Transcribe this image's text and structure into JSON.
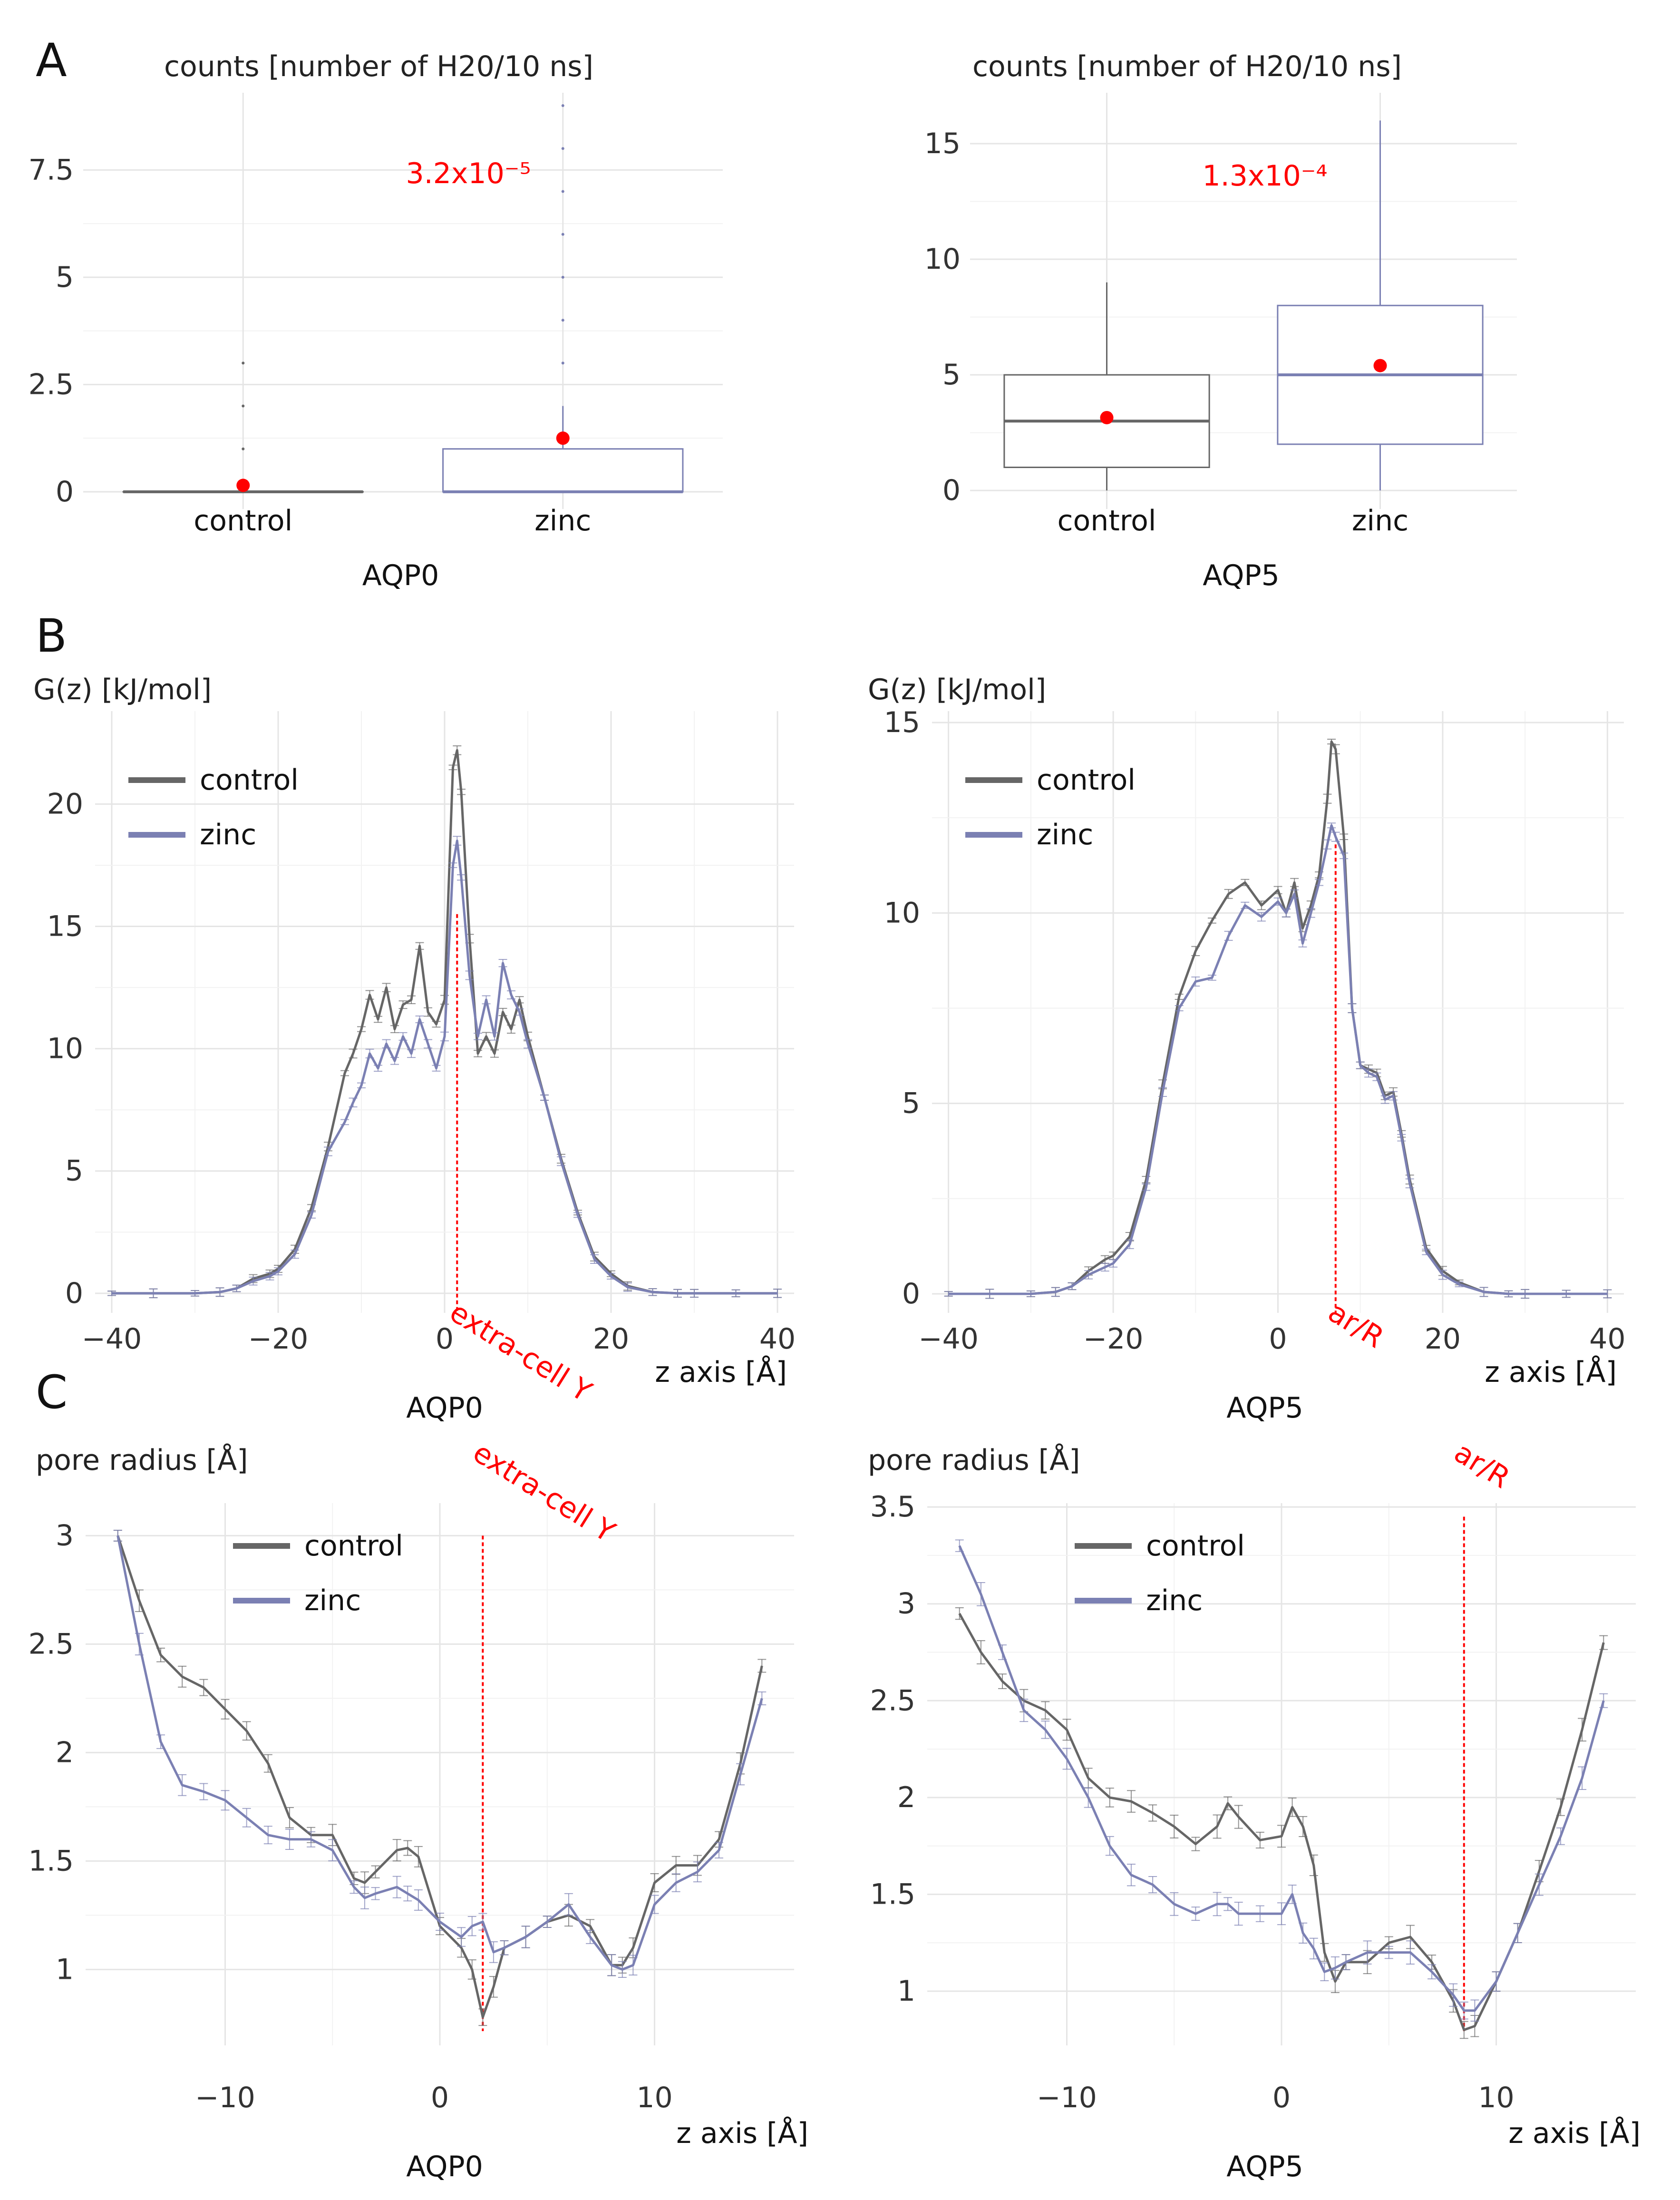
{
  "figure": {
    "panel_labels": [
      "A",
      "B",
      "C"
    ]
  },
  "colors": {
    "control": "#666666",
    "zinc": "#7b80b3",
    "mean_point": "#ff0000",
    "marker": "#ff0000"
  },
  "chart_data": [
    {
      "id": "A-AQP0",
      "type": "box",
      "ylabel": "counts [number of H20/10 ns]",
      "xlabel": "AQP0",
      "categories": [
        "control",
        "zinc"
      ],
      "yticks": [
        0,
        2.5,
        5,
        7.5
      ],
      "ytick_labels": [
        "0",
        "2.5",
        "5",
        "7.5"
      ],
      "ylim": [
        -0.4,
        9.3
      ],
      "pvalue": "3.2x10⁻⁵",
      "boxes": [
        {
          "name": "control",
          "min": 0,
          "q1": 0,
          "median": 0,
          "q3": 0,
          "max": 0,
          "mean": 0.15,
          "outliers": [
            1,
            2,
            3
          ]
        },
        {
          "name": "zinc",
          "min": 0,
          "q1": 0,
          "median": 0,
          "q3": 1,
          "max": 2,
          "mean": 1.25,
          "outliers": [
            3,
            4,
            5,
            6,
            7,
            8,
            9
          ]
        }
      ]
    },
    {
      "id": "A-AQP5",
      "type": "box",
      "ylabel": "counts [number of H20/10 ns]",
      "xlabel": "AQP5",
      "categories": [
        "control",
        "zinc"
      ],
      "yticks": [
        0,
        5,
        10,
        15
      ],
      "ytick_labels": [
        "0",
        "5",
        "10",
        "15"
      ],
      "ylim": [
        -0.8,
        17.2
      ],
      "pvalue": "1.3x10⁻⁴",
      "boxes": [
        {
          "name": "control",
          "min": 0,
          "q1": 1,
          "median": 3,
          "q3": 5,
          "max": 9,
          "mean": 3.15,
          "outliers": []
        },
        {
          "name": "zinc",
          "min": 0,
          "q1": 2,
          "median": 5,
          "q3": 8,
          "max": 16,
          "mean": 5.4,
          "outliers": []
        }
      ]
    },
    {
      "id": "B-AQP0",
      "type": "line",
      "ylabel": "G(z) [kJ/mol]",
      "xlabel": "z axis [Å]",
      "subtitle": "AQP0",
      "xlim": [
        -42,
        42
      ],
      "ylim": [
        -0.8,
        23.8
      ],
      "xticks": [
        -40,
        -20,
        0,
        20,
        40
      ],
      "xtick_labels": [
        "−40",
        "−20",
        "0",
        "20",
        "40"
      ],
      "yticks": [
        0,
        5,
        10,
        15,
        20
      ],
      "ytick_labels": [
        "0",
        "5",
        "10",
        "15",
        "20"
      ],
      "legend": [
        "control",
        "zinc"
      ],
      "marker": {
        "x": 1.5,
        "y_top": 15.5,
        "label": "extra-cell Y"
      },
      "series": [
        {
          "name": "control",
          "x": [
            -40,
            -35,
            -30,
            -27,
            -25,
            -23,
            -21,
            -20,
            -18,
            -16,
            -14,
            -12,
            -11,
            -10,
            -9,
            -8,
            -7,
            -6,
            -5,
            -4,
            -3,
            -2,
            -1,
            0,
            1,
            1.5,
            2,
            3,
            4,
            5,
            6,
            7,
            8,
            9,
            10,
            12,
            14,
            16,
            18,
            20,
            22,
            25,
            28,
            30,
            35,
            40
          ],
          "y": [
            0,
            0,
            0,
            0.05,
            0.2,
            0.6,
            0.8,
            1.0,
            1.8,
            3.5,
            6,
            9,
            9.8,
            10.8,
            12.2,
            11.2,
            12.5,
            10.8,
            11.8,
            12.0,
            14.2,
            11.5,
            11.0,
            12.0,
            21.5,
            22.2,
            20.5,
            14.5,
            9.8,
            10.5,
            9.8,
            11.5,
            10.8,
            12.0,
            10.5,
            8.0,
            5.5,
            3.3,
            1.5,
            0.8,
            0.3,
            0.05,
            0,
            0,
            0,
            0
          ]
        },
        {
          "name": "zinc",
          "x": [
            -40,
            -35,
            -30,
            -27,
            -25,
            -23,
            -21,
            -20,
            -18,
            -16,
            -14,
            -12,
            -11,
            -10,
            -9,
            -8,
            -7,
            -6,
            -5,
            -4,
            -3,
            -2,
            -1,
            0,
            1,
            1.5,
            2,
            3,
            4,
            5,
            6,
            7,
            8,
            9,
            10,
            12,
            14,
            16,
            18,
            20,
            22,
            25,
            28,
            30,
            35,
            40
          ],
          "y": [
            0,
            0,
            0,
            0.05,
            0.2,
            0.5,
            0.7,
            0.9,
            1.6,
            3.2,
            5.8,
            7.0,
            7.8,
            8.5,
            9.8,
            9.2,
            10.2,
            9.5,
            10.5,
            9.8,
            11.2,
            10.2,
            9.2,
            10.5,
            17.5,
            18.5,
            17.0,
            13.0,
            10.5,
            12.0,
            10.5,
            13.5,
            12.2,
            11.5,
            10.2,
            8.0,
            5.4,
            3.2,
            1.4,
            0.7,
            0.25,
            0.05,
            0,
            0,
            0,
            0
          ]
        }
      ]
    },
    {
      "id": "B-AQP5",
      "type": "line",
      "ylabel": "G(z) [kJ/mol]",
      "xlabel": "z axis [Å]",
      "subtitle": "AQP5",
      "xlim": [
        -42,
        42
      ],
      "ylim": [
        -0.5,
        15.3
      ],
      "xticks": [
        -40,
        -20,
        0,
        20,
        40
      ],
      "xtick_labels": [
        "−40",
        "−20",
        "0",
        "20",
        "40"
      ],
      "yticks": [
        0,
        5,
        10,
        15
      ],
      "ytick_labels": [
        "0",
        "5",
        "10",
        "15"
      ],
      "legend": [
        "control",
        "zinc"
      ],
      "marker": {
        "x": 7,
        "y_top": 11.8,
        "label": "ar/R"
      },
      "series": [
        {
          "name": "control",
          "x": [
            -40,
            -35,
            -30,
            -27,
            -25,
            -23,
            -21,
            -20,
            -18,
            -16,
            -14,
            -12,
            -10,
            -8,
            -6,
            -4,
            -2,
            0,
            1,
            2,
            3,
            4,
            5,
            6,
            6.5,
            7,
            8,
            9,
            10,
            11,
            12,
            13,
            14,
            15,
            16,
            18,
            20,
            22,
            25,
            28,
            30,
            35,
            40
          ],
          "y": [
            0,
            0,
            0,
            0.05,
            0.2,
            0.6,
            0.9,
            1.0,
            1.5,
            3.0,
            5.5,
            7.8,
            9.0,
            9.8,
            10.5,
            10.8,
            10.2,
            10.6,
            10.0,
            10.8,
            9.6,
            10.2,
            11.0,
            13.0,
            14.5,
            14.3,
            12.0,
            7.5,
            6.0,
            5.9,
            5.8,
            5.2,
            5.3,
            4.2,
            3.0,
            1.2,
            0.6,
            0.3,
            0.05,
            0,
            0,
            0,
            0
          ]
        },
        {
          "name": "zinc",
          "x": [
            -40,
            -35,
            -30,
            -27,
            -25,
            -23,
            -21,
            -20,
            -18,
            -16,
            -14,
            -12,
            -10,
            -8,
            -6,
            -4,
            -2,
            0,
            1,
            2,
            3,
            4,
            5,
            6,
            6.5,
            7,
            8,
            9,
            10,
            11,
            12,
            13,
            14,
            15,
            16,
            18,
            20,
            22,
            25,
            28,
            30,
            35,
            40
          ],
          "y": [
            0,
            0,
            0,
            0.05,
            0.2,
            0.5,
            0.7,
            0.8,
            1.3,
            2.8,
            5.3,
            7.5,
            8.2,
            8.3,
            9.4,
            10.2,
            9.9,
            10.3,
            10.0,
            10.5,
            9.2,
            10.0,
            10.8,
            11.8,
            12.3,
            12.0,
            11.5,
            7.5,
            6.0,
            5.8,
            5.7,
            5.1,
            5.2,
            4.1,
            2.9,
            1.1,
            0.5,
            0.25,
            0.05,
            0,
            0,
            0,
            0
          ]
        }
      ]
    },
    {
      "id": "C-AQP0",
      "type": "line",
      "ylabel": "pore radius [Å]",
      "xlabel": "z axis [Å]",
      "subtitle": "AQP0",
      "xlim": [
        -16.5,
        16.5
      ],
      "ylim": [
        0.65,
        3.15
      ],
      "xticks": [
        -10,
        0,
        10
      ],
      "xtick_labels": [
        "−10",
        "0",
        "10"
      ],
      "yticks": [
        1,
        1.5,
        2,
        2.5,
        3
      ],
      "ytick_labels": [
        "1",
        "1.5",
        "2",
        "2.5",
        "3"
      ],
      "legend": [
        "control",
        "zinc"
      ],
      "marker": {
        "x": 2,
        "y_top": 3.0,
        "label": "extra-cell Y"
      },
      "series": [
        {
          "name": "control",
          "x": [
            -15,
            -14,
            -13,
            -12,
            -11,
            -10,
            -9,
            -8,
            -7,
            -6,
            -5,
            -4,
            -3.5,
            -3,
            -2,
            -1.5,
            -1,
            0,
            1,
            1.5,
            2,
            2.5,
            3,
            4,
            5,
            6,
            7,
            8,
            8.5,
            9,
            10,
            11,
            12,
            13,
            14,
            15
          ],
          "y": [
            3.0,
            2.7,
            2.45,
            2.35,
            2.3,
            2.2,
            2.1,
            1.95,
            1.7,
            1.62,
            1.62,
            1.42,
            1.4,
            1.45,
            1.55,
            1.56,
            1.52,
            1.2,
            1.1,
            1.0,
            0.78,
            0.92,
            1.1,
            1.15,
            1.22,
            1.25,
            1.2,
            1.02,
            1.02,
            1.1,
            1.4,
            1.48,
            1.48,
            1.6,
            1.95,
            2.4
          ]
        },
        {
          "name": "zinc",
          "x": [
            -15,
            -14,
            -13,
            -12,
            -11,
            -10,
            -9,
            -8,
            -7,
            -6,
            -5,
            -4,
            -3.5,
            -3,
            -2,
            -1.5,
            -1,
            0,
            1,
            1.5,
            2,
            2.5,
            3,
            4,
            5,
            6,
            7,
            8,
            8.5,
            9,
            10,
            11,
            12,
            13,
            14,
            15
          ],
          "y": [
            3.0,
            2.5,
            2.05,
            1.85,
            1.82,
            1.78,
            1.7,
            1.62,
            1.6,
            1.6,
            1.55,
            1.38,
            1.33,
            1.35,
            1.38,
            1.35,
            1.32,
            1.22,
            1.15,
            1.2,
            1.22,
            1.08,
            1.1,
            1.15,
            1.22,
            1.3,
            1.15,
            1.02,
            1.0,
            1.02,
            1.3,
            1.4,
            1.45,
            1.55,
            1.9,
            2.25
          ]
        }
      ]
    },
    {
      "id": "C-AQP5",
      "type": "line",
      "ylabel": "pore radius [Å]",
      "xlabel": "z axis [Å]",
      "subtitle": "AQP5",
      "xlim": [
        -16.5,
        16.5
      ],
      "ylim": [
        0.72,
        3.52
      ],
      "xticks": [
        -10,
        0,
        10
      ],
      "xtick_labels": [
        "−10",
        "0",
        "10"
      ],
      "yticks": [
        1,
        1.5,
        2,
        2.5,
        3,
        3.5
      ],
      "ytick_labels": [
        "1",
        "1.5",
        "2",
        "2.5",
        "3",
        "3.5"
      ],
      "legend": [
        "control",
        "zinc"
      ],
      "marker": {
        "x": 8.5,
        "y_top": 3.45,
        "label": "ar/R"
      },
      "series": [
        {
          "name": "control",
          "x": [
            -15,
            -14,
            -13,
            -12,
            -11,
            -10,
            -9,
            -8,
            -7,
            -6,
            -5,
            -4,
            -3,
            -2.5,
            -2,
            -1,
            0,
            0.5,
            1,
            1.5,
            2,
            2.5,
            3,
            4,
            5,
            6,
            7,
            8,
            8.5,
            9,
            10,
            11,
            12,
            13,
            14,
            15
          ],
          "y": [
            2.95,
            2.75,
            2.6,
            2.5,
            2.45,
            2.35,
            2.1,
            2.0,
            1.98,
            1.92,
            1.85,
            1.76,
            1.85,
            1.97,
            1.9,
            1.78,
            1.8,
            1.95,
            1.85,
            1.65,
            1.2,
            1.05,
            1.15,
            1.15,
            1.25,
            1.28,
            1.15,
            0.95,
            0.8,
            0.82,
            1.05,
            1.3,
            1.62,
            1.95,
            2.35,
            2.8
          ]
        },
        {
          "name": "zinc",
          "x": [
            -15,
            -14,
            -13,
            -12,
            -11,
            -10,
            -9,
            -8,
            -7,
            -6,
            -5,
            -4,
            -3,
            -2.5,
            -2,
            -1,
            0,
            0.5,
            1,
            1.5,
            2,
            2.5,
            3,
            4,
            5,
            6,
            7,
            8,
            8.5,
            9,
            10,
            11,
            12,
            13,
            14,
            15
          ],
          "y": [
            3.3,
            3.05,
            2.75,
            2.45,
            2.35,
            2.2,
            2.0,
            1.75,
            1.6,
            1.55,
            1.45,
            1.4,
            1.45,
            1.45,
            1.4,
            1.4,
            1.4,
            1.5,
            1.3,
            1.22,
            1.1,
            1.12,
            1.15,
            1.2,
            1.2,
            1.2,
            1.1,
            0.98,
            0.9,
            0.9,
            1.05,
            1.3,
            1.55,
            1.8,
            2.1,
            2.5
          ]
        }
      ]
    }
  ]
}
